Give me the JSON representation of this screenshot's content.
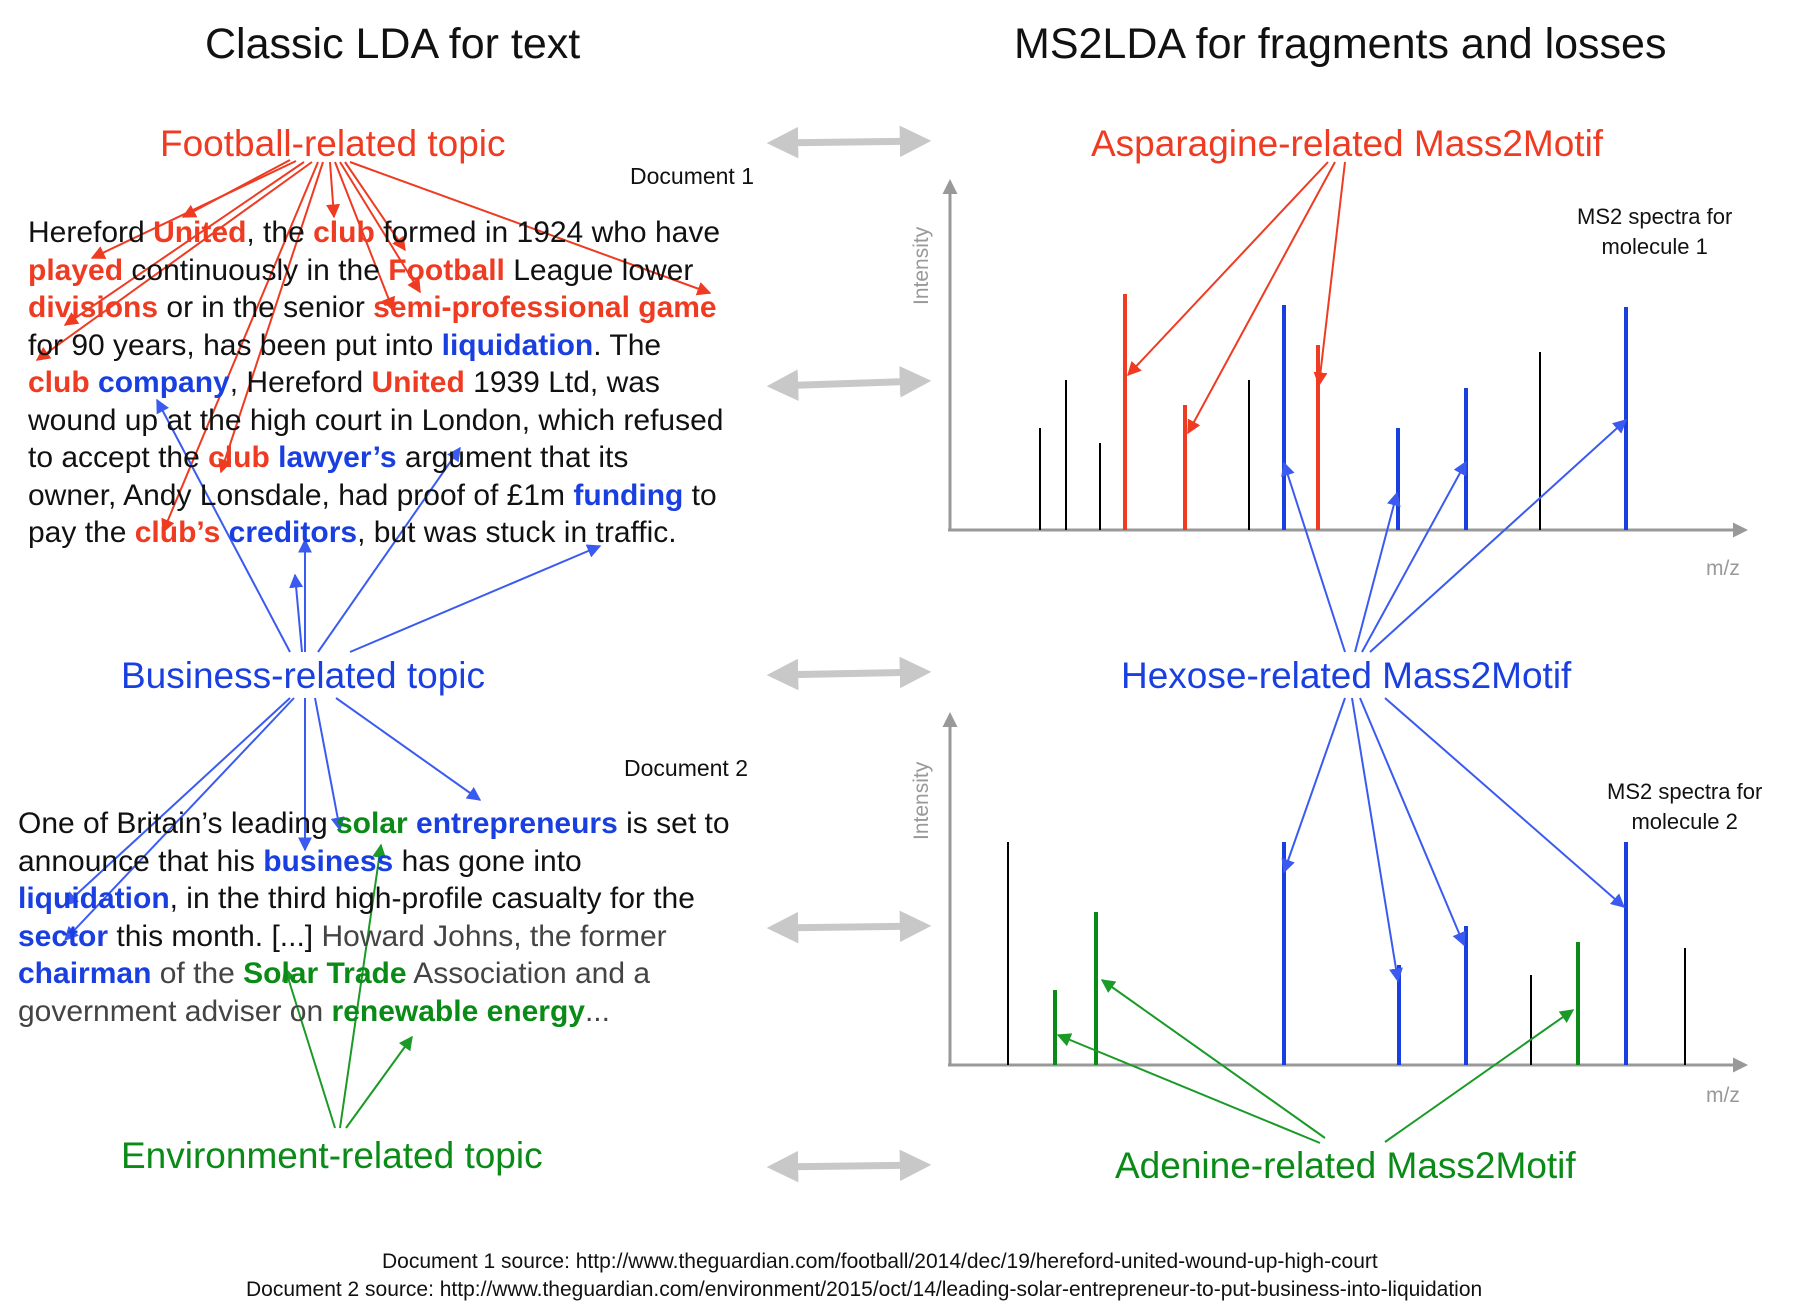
{
  "titles": {
    "left": "Classic LDA for text",
    "right": "MS2LDA for fragments and losses"
  },
  "topics": {
    "football": "Football-related topic",
    "business": "Business-related topic",
    "environment": "Environment-related topic"
  },
  "motifs": {
    "asparagine": "Asparagine-related Mass2Motif",
    "hexose": "Hexose-related Mass2Motif",
    "adenine": "Adenine-related Mass2Motif"
  },
  "documents": {
    "doc1_label": "Document 1",
    "doc2_label": "Document 2",
    "doc1_lines": [
      [
        [
          "Hereford ",
          ""
        ],
        [
          "United",
          "red"
        ],
        [
          ", the ",
          ""
        ],
        [
          "club",
          "red"
        ],
        [
          " formed in 1924 who have",
          ""
        ]
      ],
      [
        [
          "played",
          "red"
        ],
        [
          " continuously in the ",
          ""
        ],
        [
          "Football",
          "red"
        ],
        [
          " League lower",
          ""
        ]
      ],
      [
        [
          "divisions",
          "red"
        ],
        [
          " or in the senior ",
          ""
        ],
        [
          "semi-professional game",
          "red"
        ]
      ],
      [
        [
          "for 90 years, has been put into ",
          ""
        ],
        [
          "liquidation",
          "blue"
        ],
        [
          ". The",
          ""
        ]
      ],
      [
        [
          "club",
          "red"
        ],
        [
          " ",
          ""
        ],
        [
          "company",
          "blue"
        ],
        [
          ", Hereford ",
          ""
        ],
        [
          "United",
          "red"
        ],
        [
          " 1939 Ltd, was",
          ""
        ]
      ],
      [
        [
          "wound up at the high court in London, which refused",
          ""
        ]
      ],
      [
        [
          "to accept the ",
          ""
        ],
        [
          "club",
          "red"
        ],
        [
          " ",
          ""
        ],
        [
          "lawyer’s",
          "blue"
        ],
        [
          " argument that its",
          ""
        ]
      ],
      [
        [
          "owner, Andy Lonsdale, had proof of £1m ",
          ""
        ],
        [
          "funding",
          "blue"
        ],
        [
          " to",
          ""
        ]
      ],
      [
        [
          "pay the ",
          ""
        ],
        [
          "club’s",
          "red"
        ],
        [
          " ",
          ""
        ],
        [
          "creditors",
          "blue"
        ],
        [
          ", but was stuck in traffic.",
          ""
        ]
      ]
    ],
    "doc2_lines": [
      [
        [
          "One of Britain’s leading ",
          ""
        ],
        [
          "solar",
          "green"
        ],
        [
          " ",
          ""
        ],
        [
          "entrepreneurs",
          "blue"
        ],
        [
          " is set to",
          ""
        ]
      ],
      [
        [
          "announce that his ",
          ""
        ],
        [
          "business",
          "blue"
        ],
        [
          " has gone into",
          ""
        ]
      ],
      [
        [
          "liquidation",
          "blue"
        ],
        [
          ", in the third high-profile casualty for the",
          ""
        ]
      ],
      [
        [
          "sector",
          "blue"
        ],
        [
          " this month. [...] ",
          ""
        ],
        [
          "Howard Johns, the former",
          "grey"
        ]
      ],
      [
        [
          "chairman",
          "blue"
        ],
        [
          " of the ",
          "grey"
        ],
        [
          "Solar Trade",
          "green"
        ],
        [
          " Association and a",
          "grey"
        ]
      ],
      [
        [
          "government adviser on ",
          "grey"
        ],
        [
          "renewable energy",
          "green"
        ],
        [
          "...",
          "grey"
        ]
      ]
    ]
  },
  "spectra": {
    "intensity_label": "Intensity",
    "mz_label": "m/z",
    "molecule1_caption_1": "MS2 spectra for",
    "molecule1_caption_2": "molecule 1",
    "molecule2_caption_1": "MS2 spectra for",
    "molecule2_caption_2": "molecule 2"
  },
  "sources": {
    "doc1": "Document 1 source: http://www.theguardian.com/football/2014/dec/19/hereford-united-wound-up-high-court",
    "doc2": "Document 2 source: http://www.theguardian.com/environment/2015/oct/14/leading-solar-entrepreneur-to-put-business-into-liquidation"
  },
  "colors": {
    "football": "#ee3b22",
    "business": "#1a3fe0",
    "environment": "#0a8a16",
    "arrow_grey": "#c8c8c8",
    "axis": "#999999"
  }
}
